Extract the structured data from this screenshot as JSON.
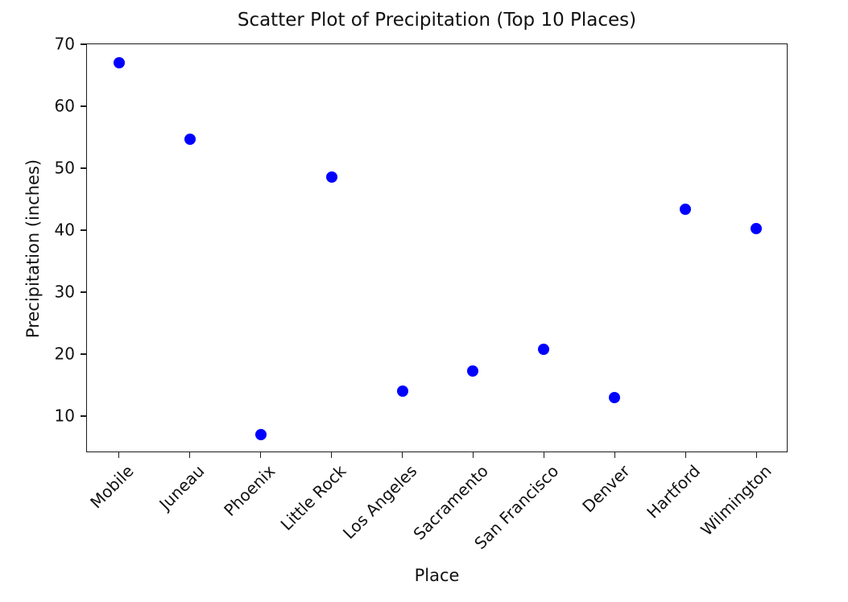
{
  "chart_data": {
    "type": "scatter",
    "title": "Scatter Plot of Precipitation (Top 10 Places)",
    "xlabel": "Place",
    "ylabel": "Precipitation (inches)",
    "categories": [
      "Mobile",
      "Juneau",
      "Phoenix",
      "Little Rock",
      "Los Angeles",
      "Sacramento",
      "San Francisco",
      "Denver",
      "Hartford",
      "Wilmington"
    ],
    "values": [
      67.0,
      54.7,
      7.0,
      48.5,
      14.0,
      17.2,
      20.7,
      13.0,
      43.4,
      40.2
    ],
    "yticks": [
      10,
      20,
      30,
      40,
      50,
      60,
      70
    ],
    "ylim": [
      4,
      70
    ],
    "xlim": [
      -0.45,
      9.45
    ],
    "x_tick_rotation_deg": 45,
    "grid": false,
    "legend": null,
    "colors": {
      "marker": "#0000ff",
      "spine": "#1c1c1c",
      "text": "#111111",
      "background": "#ffffff"
    }
  }
}
